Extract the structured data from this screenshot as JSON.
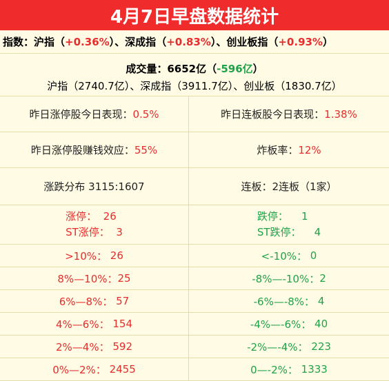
{
  "title": "4月7日早盘数据统计",
  "indices": {
    "label": "指数：",
    "sh_name": "沪指",
    "sh_change": "+0.36%",
    "sz_name": "深成指",
    "sz_change": "+0.83%",
    "cy_name": "创业板指",
    "cy_change": "+0.93%"
  },
  "volume": {
    "label": "成交量：",
    "total": "6652亿",
    "change": "-596亿",
    "detail": "沪指（2740.7亿）、深成指（3911.7亿）、创业板（1830.7亿）"
  },
  "stats": {
    "zt_perf_label": "昨日涨停股今日表现：",
    "zt_perf_value": "0.5%",
    "lb_perf_label": "昨日连板股今日表现：",
    "lb_perf_value": "1.38%",
    "zt_money_label": "昨日涨停股赚钱效应：",
    "zt_money_value": "55%",
    "zb_label": "炸板率：",
    "zb_value": "12%",
    "dist_text": "涨跌分布 3115:1607",
    "lianban_text": "连板：2连板（1家）"
  },
  "limit": {
    "up_label": "涨停：",
    "up_value": "26",
    "st_up_label": "ST涨停：",
    "st_up_value": "3",
    "down_label": "跌停：",
    "down_value": "1",
    "st_down_label": "ST跌停：",
    "st_down_value": "4"
  },
  "distribution": [
    {
      "left_label": ">10%：",
      "left_value": "26",
      "right_label": "<-10%：",
      "right_value": "0"
    },
    {
      "left_label": "8%—10%：",
      "left_value": "25",
      "right_label": "-8%—-10%：",
      "right_value": "2"
    },
    {
      "left_label": "6%—8%：",
      "left_value": "57",
      "right_label": "-6%—-8%：",
      "right_value": "4"
    },
    {
      "left_label": "4%—6%：",
      "left_value": "154",
      "right_label": "-4%—-6%：",
      "right_value": "40"
    },
    {
      "left_label": "2%—4%：",
      "left_value": "592",
      "right_label": "-2%—-4%：",
      "right_value": "223"
    },
    {
      "left_label": "0%—2%：",
      "left_value": "2455",
      "right_label": "0—-2%：",
      "right_value": "1333"
    }
  ]
}
